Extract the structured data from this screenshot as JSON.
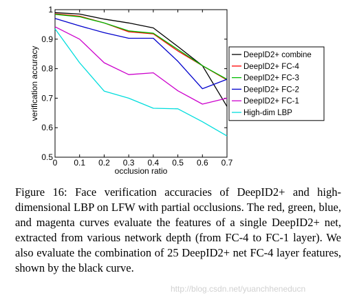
{
  "chart_data": {
    "type": "line",
    "xlabel": "occlusion ratio",
    "ylabel": "verification accuracy",
    "xlim": [
      0,
      0.7
    ],
    "ylim": [
      0.5,
      1
    ],
    "xticks": [
      "0",
      "0.1",
      "0.2",
      "0.3",
      "0.4",
      "0.5",
      "0.6",
      "0.7"
    ],
    "yticks": [
      "0.5",
      "0.6",
      "0.7",
      "0.8",
      "0.9",
      "1"
    ],
    "x": [
      0,
      0.1,
      0.2,
      0.3,
      0.4,
      0.5,
      0.6,
      0.7
    ],
    "grid": false,
    "legend_position": "right",
    "series": [
      {
        "name": "DeepID2+ combine",
        "color": "#000000",
        "values": [
          0.99,
          0.985,
          0.968,
          0.955,
          0.938,
          0.875,
          0.81,
          0.672
        ]
      },
      {
        "name": "DeepID2+ FC-4",
        "color": "#ff0000",
        "values": [
          0.986,
          0.978,
          0.955,
          0.925,
          0.918,
          0.86,
          0.81,
          0.762
        ]
      },
      {
        "name": "DeepID2+ FC-3",
        "color": "#00bb00",
        "values": [
          0.984,
          0.976,
          0.955,
          0.928,
          0.92,
          0.865,
          0.81,
          0.764
        ]
      },
      {
        "name": "DeepID2+ FC-2",
        "color": "#0000cc",
        "values": [
          0.97,
          0.945,
          0.922,
          0.903,
          0.903,
          0.825,
          0.732,
          0.764
        ]
      },
      {
        "name": "DeepID2+ FC-1",
        "color": "#cc00cc",
        "values": [
          0.942,
          0.9,
          0.82,
          0.78,
          0.786,
          0.725,
          0.68,
          0.7
        ]
      },
      {
        "name": "High-dim LBP",
        "color": "#00dddd",
        "values": [
          0.935,
          0.82,
          0.724,
          0.7,
          0.666,
          0.664,
          0.62,
          0.572
        ]
      }
    ]
  },
  "caption": {
    "text": "Figure 16: Face verification accuracies of DeepID2+ and high-dimensional LBP on LFW with partial occlusions. The red, green, blue, and magenta curves evaluate the features of a single DeepID2+ net, extracted from various network depth (from FC-4 to FC-1 layer). We also evaluate the combination of 25 DeepID2+ net FC-4 layer features, shown by the black curve."
  },
  "watermark": {
    "text": "http://blog.csdn.net/yuanchheneducn"
  }
}
